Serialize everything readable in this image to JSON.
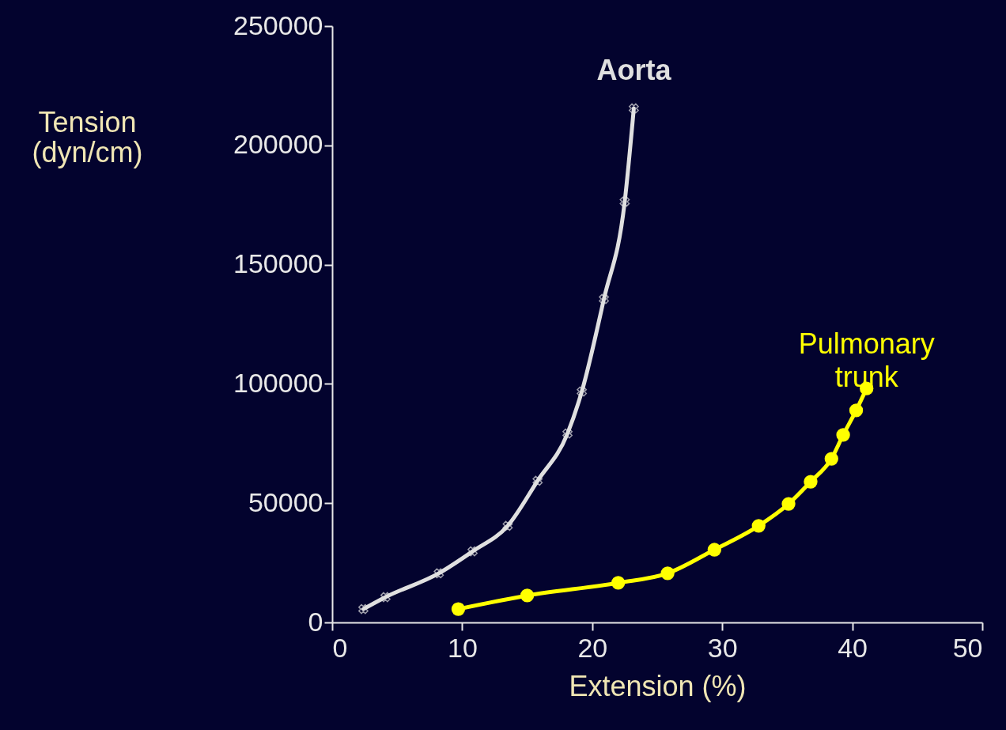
{
  "chart_data": {
    "type": "line",
    "xlabel": "Extension (%)",
    "ylabel": "Tension (dyn/cm)",
    "xlim": [
      0,
      50
    ],
    "xticks": [
      0,
      10,
      20,
      30,
      40,
      50
    ],
    "ylim": [
      0,
      250000
    ],
    "yticks": [
      0,
      50000,
      100000,
      150000,
      200000,
      250000
    ],
    "grid": false,
    "series": [
      {
        "name": "Aorta",
        "color": "#e0e0e0",
        "marker": "cross",
        "x": [
          2.4,
          4.1,
          8.2,
          10.8,
          13.5,
          15.8,
          18.1,
          19.2,
          20.9,
          22.5,
          23.2
        ],
        "values": [
          5600,
          10600,
          20600,
          29800,
          40500,
          59400,
          79200,
          96800,
          135600,
          176400,
          215500
        ]
      },
      {
        "name": "Pulmonary trunk",
        "color": "#ffff00",
        "marker": "circle",
        "x": [
          9.7,
          15.0,
          22.0,
          25.8,
          29.4,
          32.8,
          35.1,
          36.8,
          38.4,
          39.3,
          40.3,
          41.1
        ],
        "values": [
          5600,
          11300,
          16600,
          20600,
          30500,
          40500,
          49700,
          59000,
          68600,
          78600,
          88900,
          98100
        ]
      }
    ]
  }
}
